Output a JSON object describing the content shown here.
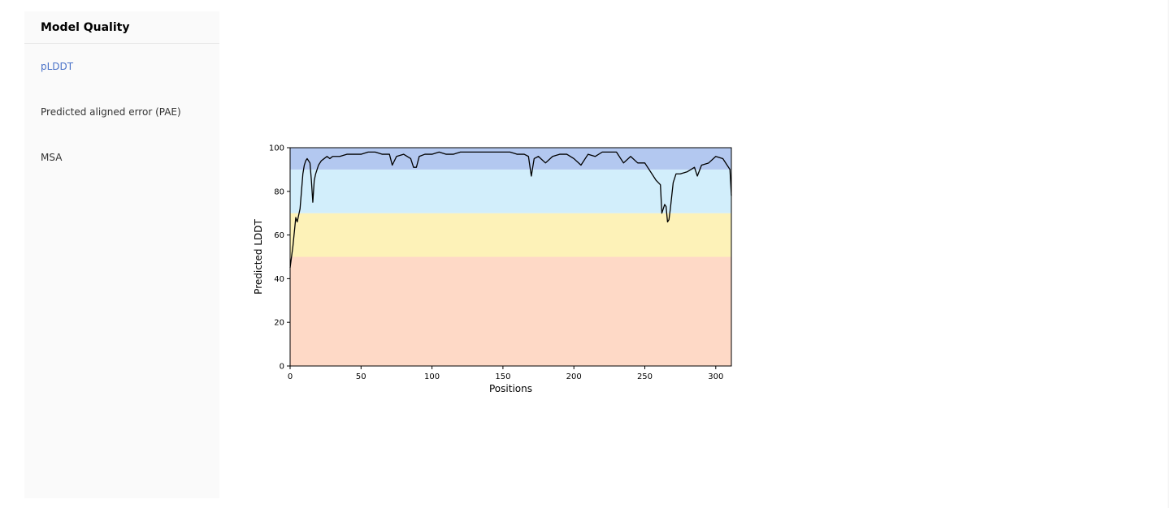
{
  "sidebar": {
    "title": "Model Quality",
    "items": [
      {
        "label": "pLDDT",
        "active": true
      },
      {
        "label": "Predicted aligned error (PAE)",
        "active": false
      },
      {
        "label": "MSA",
        "active": false
      }
    ]
  },
  "colors": {
    "accent": "#4a72c8",
    "band_very_high": "#b3c8f0",
    "band_confident": "#d2eefb",
    "band_low": "#fdf2b8",
    "band_very_low": "#fed9c6",
    "line": "#000000"
  },
  "chart_data": {
    "type": "line",
    "title": "",
    "xlabel": "Positions",
    "ylabel": "Predicted LDDT",
    "xlim": [
      0,
      311
    ],
    "ylim": [
      0,
      100
    ],
    "xticks": [
      0,
      50,
      100,
      150,
      200,
      250,
      300
    ],
    "yticks": [
      0,
      20,
      40,
      60,
      80,
      100
    ],
    "bands": [
      {
        "name": "very-low",
        "from": 0,
        "to": 50,
        "color": "#fed9c6"
      },
      {
        "name": "low",
        "from": 50,
        "to": 70,
        "color": "#fdf2b8"
      },
      {
        "name": "confident",
        "from": 70,
        "to": 90,
        "color": "#d2eefb"
      },
      {
        "name": "very-high",
        "from": 90,
        "to": 100,
        "color": "#b3c8f0"
      }
    ],
    "series": [
      {
        "name": "pLDDT",
        "x": [
          0,
          2,
          4,
          5,
          6,
          7,
          8,
          9,
          10,
          11,
          12,
          13,
          14,
          15,
          16,
          17,
          18,
          19,
          20,
          22,
          24,
          26,
          28,
          30,
          35,
          40,
          45,
          50,
          55,
          60,
          65,
          70,
          72,
          75,
          80,
          85,
          87,
          89,
          91,
          95,
          100,
          105,
          110,
          115,
          120,
          125,
          130,
          135,
          140,
          145,
          150,
          155,
          160,
          165,
          168,
          170,
          172,
          175,
          180,
          185,
          190,
          195,
          200,
          205,
          210,
          215,
          220,
          225,
          230,
          235,
          240,
          245,
          250,
          255,
          258,
          261,
          262,
          263,
          264,
          265,
          266,
          267,
          268,
          270,
          272,
          275,
          280,
          285,
          287,
          290,
          295,
          300,
          305,
          308,
          310,
          311
        ],
        "y": [
          45,
          55,
          68,
          66,
          69,
          72,
          80,
          88,
          92,
          94,
          95,
          94,
          93,
          85,
          75,
          85,
          88,
          90,
          92,
          94,
          95,
          96,
          95,
          96,
          96,
          97,
          97,
          97,
          98,
          98,
          97,
          97,
          92,
          96,
          97,
          95,
          91,
          91,
          96,
          97,
          97,
          98,
          97,
          97,
          98,
          98,
          98,
          98,
          98,
          98,
          98,
          98,
          97,
          97,
          96,
          87,
          95,
          96,
          93,
          96,
          97,
          97,
          95,
          92,
          97,
          96,
          98,
          98,
          98,
          93,
          96,
          93,
          93,
          88,
          85,
          83,
          70,
          72,
          74,
          73,
          66,
          67,
          72,
          84,
          88,
          88,
          89,
          91,
          87,
          92,
          93,
          96,
          95,
          92,
          90,
          78
        ]
      }
    ]
  }
}
